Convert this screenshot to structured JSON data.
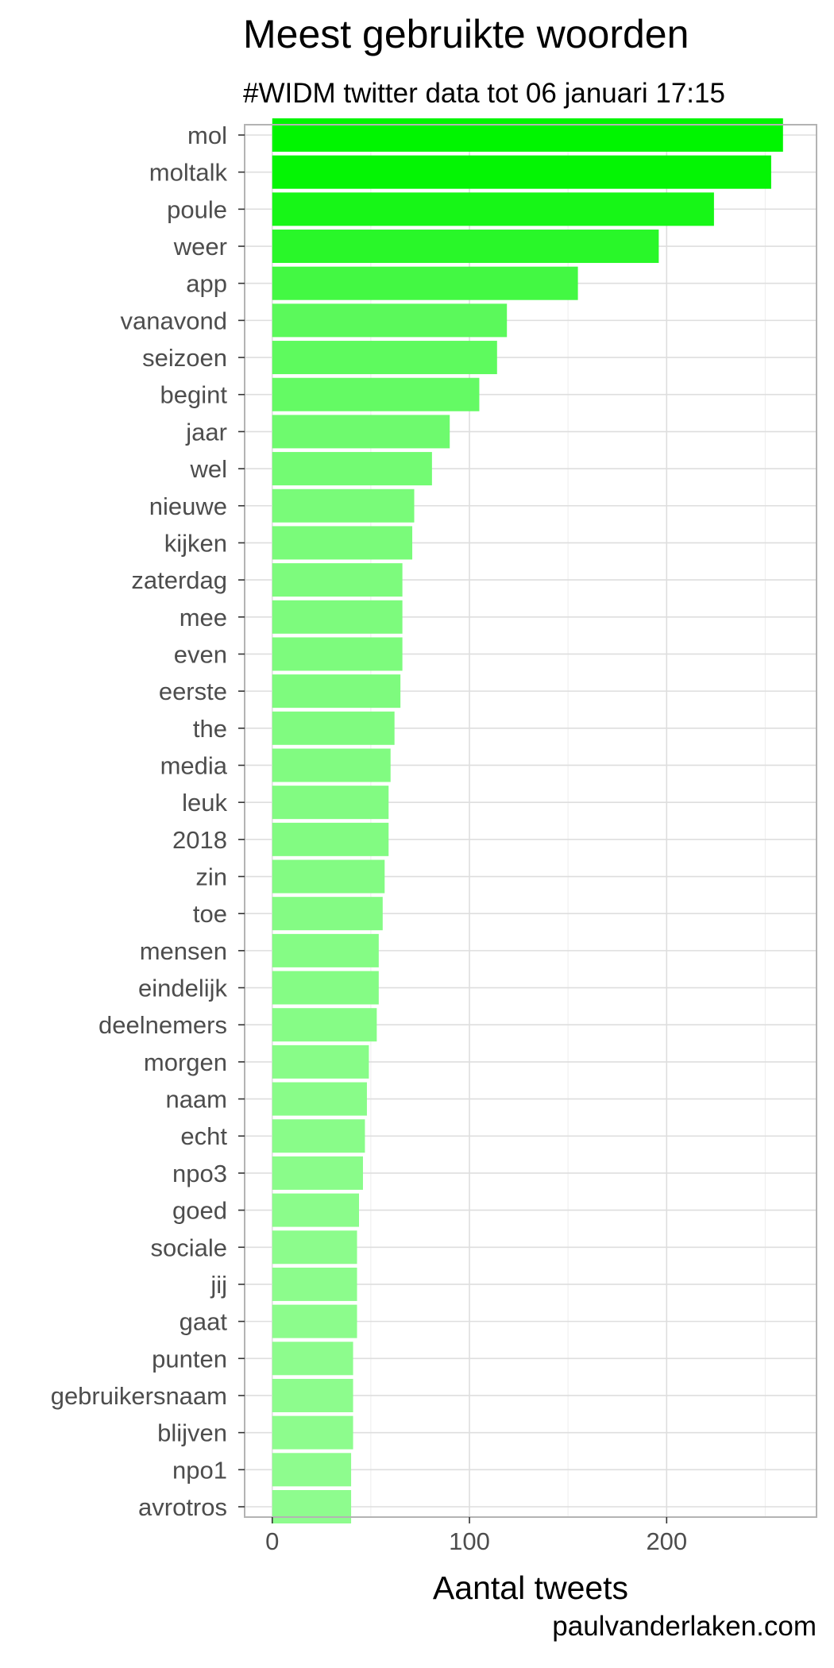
{
  "chart_data": {
    "type": "bar",
    "orientation": "horizontal",
    "title": "Meest gebruikte woorden",
    "subtitle": "#WIDM twitter data tot 06 januari 17:15",
    "xlabel": "Aantal tweets",
    "ylabel": "",
    "caption": "paulvanderlaken.com",
    "xlim": [
      -14,
      276
    ],
    "xticks": [
      0,
      100,
      200
    ],
    "grid": true,
    "legend": "none",
    "categories": [
      "mol",
      "moltalk",
      "poule",
      "weer",
      "app",
      "vanavond",
      "seizoen",
      "begint",
      "jaar",
      "wel",
      "nieuwe",
      "kijken",
      "zaterdag",
      "mee",
      "even",
      "eerste",
      "the",
      "media",
      "leuk",
      "2018",
      "zin",
      "toe",
      "mensen",
      "eindelijk",
      "deelnemers",
      "morgen",
      "naam",
      "echt",
      "npo3",
      "goed",
      "sociale",
      "jij",
      "gaat",
      "punten",
      "gebruikersnaam",
      "blijven",
      "npo1",
      "avrotros"
    ],
    "values": [
      259,
      253,
      224,
      196,
      155,
      119,
      114,
      105,
      90,
      81,
      72,
      71,
      66,
      66,
      66,
      65,
      62,
      60,
      59,
      59,
      57,
      56,
      54,
      54,
      53,
      49,
      48,
      47,
      46,
      44,
      43,
      43,
      43,
      41,
      41,
      41,
      40,
      40
    ],
    "color_scale": {
      "low": "#8efc8e",
      "high": "#00f500"
    }
  }
}
